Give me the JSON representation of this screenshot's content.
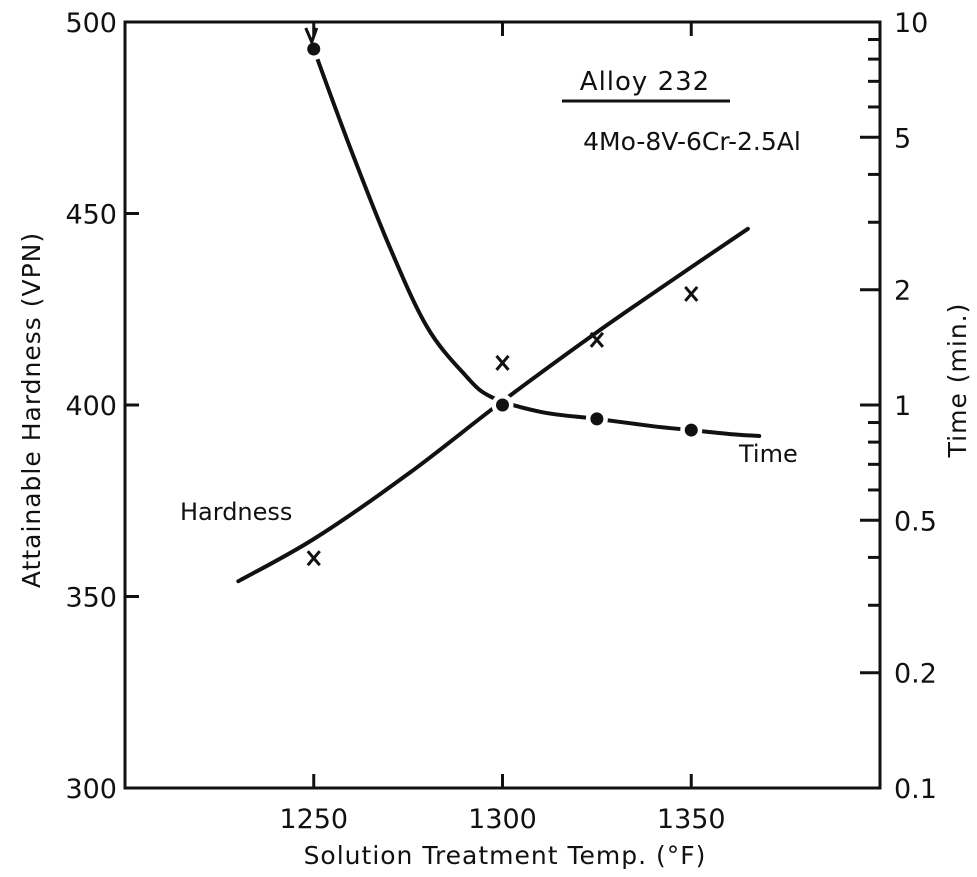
{
  "chart_data": {
    "type": "line",
    "title": "Alloy 232",
    "subtitle": "4Mo-8V-6Cr-2.5Al",
    "xlabel": "Solution Treatment Temp. (°F)",
    "ylabel": "Attainable Hardness (VPN)",
    "y2label": "Time (min.)",
    "xlim": [
      1200,
      1400
    ],
    "ylim": [
      300,
      500
    ],
    "y2lim": [
      0.1,
      10
    ],
    "y2scale": "log",
    "grid": false,
    "xticks": [
      1250,
      1300,
      1350
    ],
    "xtick_labels": [
      "1250",
      "1300",
      "1350"
    ],
    "yticks": [
      300,
      350,
      400,
      450,
      500
    ],
    "ytick_labels": [
      "300",
      "350",
      "400",
      "450",
      "500"
    ],
    "y2ticks_labeled": [
      0.1,
      0.2,
      0.5,
      1,
      2,
      5,
      10
    ],
    "y2tick_labels": [
      "0.1",
      "0.2",
      "0.5",
      "1",
      "2",
      "5",
      "10"
    ],
    "y2ticks_minor": [
      0.3,
      0.4,
      0.6,
      0.7,
      0.8,
      0.9,
      3,
      4,
      6,
      7,
      8,
      9
    ],
    "series": [
      {
        "name": "Hardness",
        "axis": "left",
        "marker": "x",
        "points": {
          "x": [
            1250,
            1300,
            1325,
            1350
          ],
          "y": [
            360,
            411,
            417,
            429
          ]
        },
        "curve": {
          "x": [
            1230,
            1250,
            1275,
            1300,
            1325,
            1350,
            1365
          ],
          "y": [
            354,
            365,
            382,
            401,
            419,
            436,
            446
          ]
        }
      },
      {
        "name": "Time",
        "axis": "right",
        "marker": "dot",
        "points": {
          "x": [
            1250,
            1300,
            1325,
            1350
          ],
          "y": [
            8.5,
            1.0,
            0.92,
            0.86
          ]
        },
        "curve": {
          "x": [
            1250,
            1260,
            1270,
            1280,
            1290,
            1297,
            1310,
            1325,
            1340,
            1350,
            1360,
            1368
          ],
          "y": [
            8.5,
            4.6,
            2.6,
            1.6,
            1.2,
            1.05,
            0.96,
            0.92,
            0.88,
            0.86,
            0.84,
            0.83
          ]
        }
      }
    ],
    "annotations": [
      {
        "text": "Hardness"
      },
      {
        "text": "Time"
      }
    ]
  }
}
